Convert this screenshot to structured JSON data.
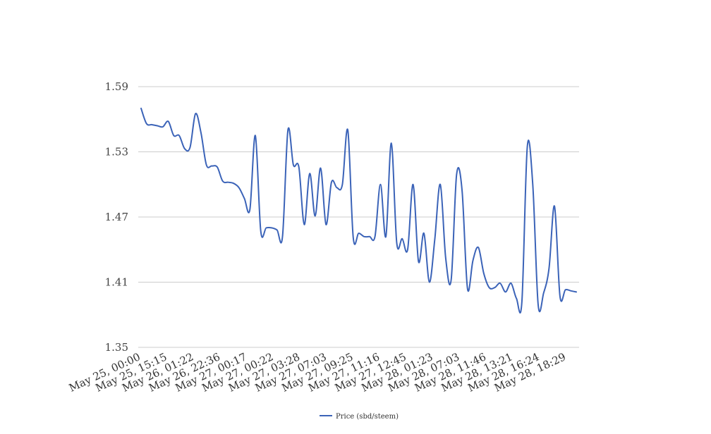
{
  "chart_data": {
    "type": "line",
    "title": "",
    "xlabel": "",
    "ylabel": "",
    "ylim": [
      1.35,
      1.59
    ],
    "y_ticks": [
      "1.35",
      "1.41",
      "1.47",
      "1.53",
      "1.59"
    ],
    "x_tick_labels": [
      "May 25, 00:00",
      "May 25, 15:15",
      "May 26, 01:22",
      "May 26, 22:36",
      "May 27, 00:17",
      "May 27, 00:22",
      "May 27, 03:28",
      "May 27, 07:03",
      "May 27, 09:25",
      "May 27, 11:16",
      "May 27, 12:45",
      "May 28, 01:23",
      "May 28, 07:03",
      "May 28, 11:46",
      "May 28, 13:21",
      "May 28, 16:24",
      "May 28, 18:29"
    ],
    "grid": true,
    "legend_position": "bottom-center",
    "series": [
      {
        "name": "Price (sbd/steem)",
        "color": "#3b63b8",
        "values": [
          1.57,
          1.556,
          1.555,
          1.554,
          1.553,
          1.558,
          1.545,
          1.545,
          1.533,
          1.534,
          1.565,
          1.548,
          1.518,
          1.517,
          1.516,
          1.503,
          1.502,
          1.501,
          1.497,
          1.487,
          1.477,
          1.545,
          1.457,
          1.46,
          1.46,
          1.458,
          1.452,
          1.55,
          1.518,
          1.516,
          1.463,
          1.51,
          1.471,
          1.515,
          1.463,
          1.502,
          1.497,
          1.5,
          1.55,
          1.451,
          1.455,
          1.452,
          1.452,
          1.452,
          1.5,
          1.452,
          1.538,
          1.446,
          1.45,
          1.44,
          1.5,
          1.429,
          1.455,
          1.41,
          1.45,
          1.5,
          1.432,
          1.412,
          1.509,
          1.495,
          1.404,
          1.43,
          1.442,
          1.418,
          1.405,
          1.405,
          1.409,
          1.401,
          1.409,
          1.395,
          1.392,
          1.535,
          1.5,
          1.389,
          1.4,
          1.423,
          1.48,
          1.397,
          1.403,
          1.402,
          1.401
        ]
      }
    ]
  }
}
